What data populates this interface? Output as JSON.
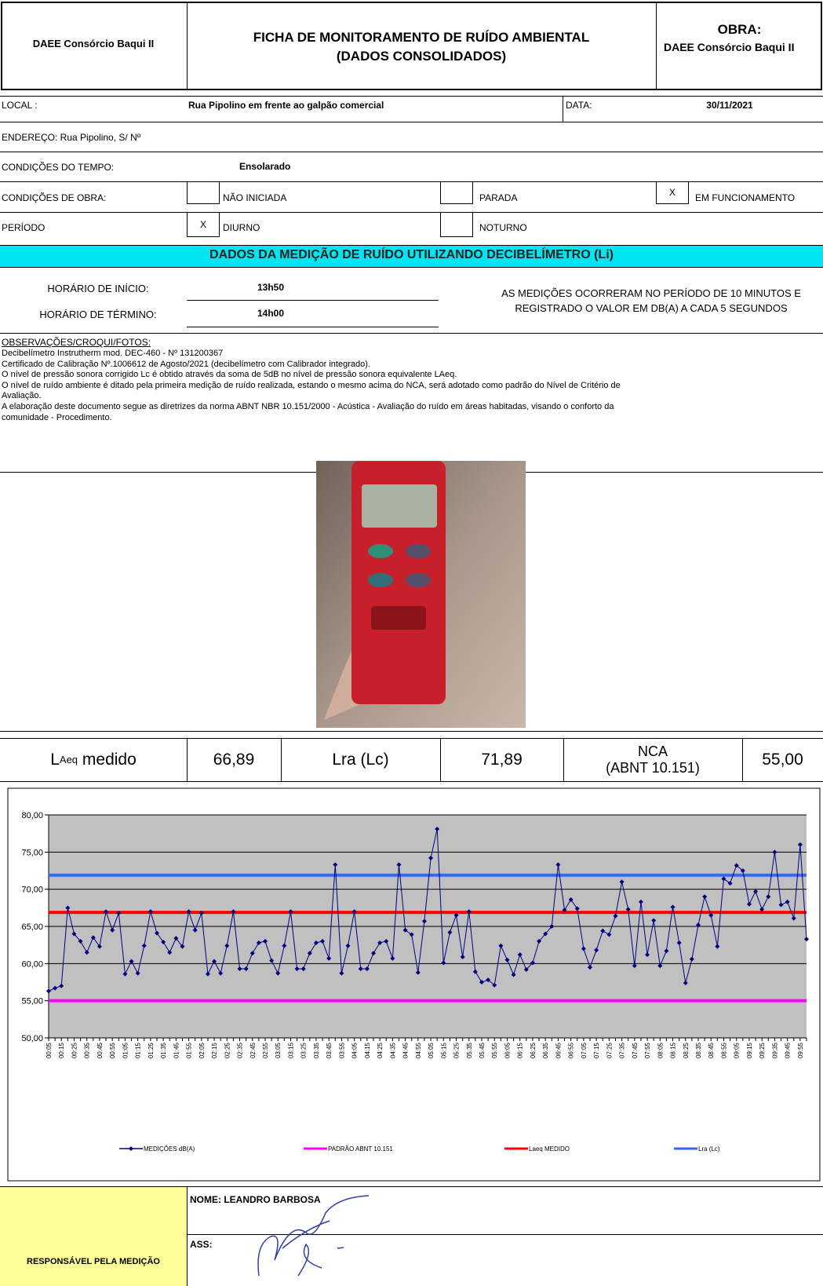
{
  "header": {
    "company": "DAEE Consórcio Baqui II",
    "title_line1": "FICHA DE MONITORAMENTO DE RUÍDO AMBIENTAL",
    "title_line2": "(DADOS CONSOLIDADOS)",
    "obra_label": "OBRA:",
    "obra_value": "DAEE Consórcio Baqui II"
  },
  "info": {
    "local_label": "LOCAL :",
    "local_value": "Rua Pipolino em frente ao galpão comercial",
    "data_label": "DATA:",
    "data_value": "30/11/2021",
    "endereco": "ENDEREÇO:  Rua Pipolino, S/ Nº",
    "tempo_label": "CONDIÇÕES DO TEMPO:",
    "tempo_value": "Ensolarado",
    "obra_label": "CONDIÇÕES DE OBRA:",
    "obra_options": [
      {
        "label": "NÃO INICIADA"
      },
      {
        "label": "PARADA"
      },
      {
        "mark": "X",
        "label": "EM FUNCIONAMENTO"
      }
    ],
    "periodo_label": "PERÍODO",
    "periodo_options": [
      {
        "mark": "X",
        "label": "DIURNO"
      },
      {
        "label": "NOTURNO"
      }
    ]
  },
  "section_title": "DADOS DA MEDIÇÃO DE RUÍDO UTILIZANDO DECIBELÍMETRO (Li)",
  "schedule": {
    "start_label": "HORÁRIO DE INÍCIO:",
    "start": "13h50",
    "end_label": "HORÁRIO DE TÉRMINO:",
    "end": "14h00",
    "note_line1": "AS MEDIÇÕES OCORRERAM NO PERÍODO DE 10 MINUTOS E",
    "note_line2": "REGISTRADO O VALOR EM DB(A) A CADA 5 SEGUNDOS"
  },
  "observations": {
    "title": "OBSERVAÇÕES/CROQUI/FOTOS:",
    "lines": [
      "Decibelímetro Instrutherm mod. DEC-460 - Nº 131200367",
      "Certificado de Calibração Nº.1006612 de Agosto/2021 (decibelímetro com Calibrador integrado).",
      "O nível de pressão sonora corrigido Lc é obtido através da soma de 5dB no nível de pressão sonora equivalente LAeq.",
      "O nível de ruído ambiente é ditado pela primeira medição de ruído realizada, estando o mesmo acima do NCA, será adotado como padrão do Nível de Critério de",
      "Avaliação.",
      "A elaboração deste documento segue as diretrizes da norma ABNT NBR 10.151/2000 - Acústica - Avaliação do ruído em áreas habitadas, visando o conforto da",
      "comunidade - Procedimento."
    ]
  },
  "results": [
    {
      "label_main": "L",
      "label_sub": "Aeq",
      "label_rest": "medido",
      "value": "66,89"
    },
    {
      "label": "Lra (Lc)",
      "value": "71,89"
    },
    {
      "label_line1": "NCA",
      "label_line2": "(ABNT 10.151)",
      "value": "55,00"
    }
  ],
  "chart_data": {
    "type": "line",
    "categories": [
      "00:05",
      null,
      "00:15",
      null,
      "00:25",
      null,
      "00:35",
      null,
      "00:45",
      null,
      "00:55",
      null,
      "01:05",
      null,
      "01:15",
      null,
      "01:25",
      null,
      "01:35",
      null,
      "01:45",
      null,
      "01:55",
      null,
      "02:05",
      null,
      "02:15",
      null,
      "02:25",
      null,
      "02:35",
      null,
      "02:45",
      null,
      "02:55",
      null,
      "03:05",
      null,
      "03:15",
      null,
      "03:25",
      null,
      "03:35",
      null,
      "03:45",
      null,
      "03:55",
      null,
      "04:05",
      null,
      "04:15",
      null,
      "04:25",
      null,
      "04:35",
      null,
      "04:45",
      null,
      "04:55",
      null,
      "05:05",
      null,
      "05:15",
      null,
      "05:25",
      null,
      "05:35",
      null,
      "05:45",
      null,
      "05:55",
      null,
      "06:05",
      null,
      "06:15",
      null,
      "06:25",
      null,
      "06:35",
      null,
      "06:45",
      null,
      "06:55",
      null,
      "07:05",
      null,
      "07:15",
      null,
      "07:25",
      null,
      "07:35",
      null,
      "07:45",
      null,
      "07:55",
      null,
      "08:05",
      null,
      "08:15",
      null,
      "08:25",
      null,
      "08:35",
      null,
      "08:45",
      null,
      "08:55",
      null,
      "09:05",
      null,
      "09:15",
      null,
      "09:25",
      null,
      "09:35",
      null,
      "09:45",
      null,
      "09:55",
      null
    ],
    "series": [
      {
        "name": "MEDIÇÕES dB(A)",
        "color": "#000080",
        "values": [
          56.3,
          56.7,
          57.0,
          67.5,
          64.0,
          63.0,
          61.5,
          63.5,
          62.3,
          67.0,
          64.5,
          66.8,
          58.6,
          60.3,
          58.7,
          62.4,
          67.0,
          64.1,
          62.9,
          61.5,
          63.4,
          62.3,
          67.0,
          64.5,
          66.8,
          58.6,
          60.3,
          58.7,
          62.4,
          67.0,
          59.3,
          59.3,
          61.4,
          62.8,
          63.0,
          60.4,
          58.7,
          62.4,
          67.0,
          59.3,
          59.3,
          61.4,
          62.8,
          63.0,
          60.7,
          73.3,
          58.7,
          62.4,
          67.0,
          59.3,
          59.3,
          61.4,
          62.8,
          63.0,
          60.7,
          73.3,
          64.5,
          63.9,
          58.8,
          65.7,
          74.2,
          78.1,
          60.1,
          64.2,
          66.5,
          60.9,
          67.0,
          58.9,
          57.5,
          57.8,
          57.1,
          62.4,
          60.5,
          58.5,
          61.2,
          59.2,
          60.1,
          63.0,
          64.0,
          65.0,
          73.3,
          67.2,
          68.6,
          67.4,
          62.0,
          59.5,
          61.8,
          64.4,
          63.9,
          66.4,
          71.0,
          67.3,
          59.7,
          68.3,
          61.2,
          65.8,
          59.7,
          61.7,
          67.6,
          62.8,
          57.4,
          60.6,
          65.2,
          69.0,
          66.5,
          62.3,
          71.4,
          70.8,
          73.2,
          72.5,
          68.0,
          69.7,
          67.3,
          69.0,
          75.0,
          67.9,
          68.3,
          66.1,
          76.0,
          63.3
        ]
      }
    ],
    "lines": [
      {
        "name": "PADRÃO ABNT 10.151",
        "color": "#ff00ff",
        "value": 55
      },
      {
        "name": "Laeq MEDIDO",
        "color": "#ff0000",
        "value": 66.89
      },
      {
        "name": "Lra (Lc)",
        "color": "#3366ff",
        "value": 71.89
      }
    ],
    "ylim": [
      50,
      80
    ],
    "yticks": [
      {
        "value": 50,
        "label": "50,00"
      },
      {
        "value": 55,
        "label": "55,00"
      },
      {
        "value": 60,
        "label": "60,00"
      },
      {
        "value": 65,
        "label": "65,00"
      },
      {
        "value": 70,
        "label": "70,00"
      },
      {
        "value": 75,
        "label": "75,00"
      },
      {
        "value": 80,
        "label": "80,00"
      }
    ],
    "grid": true,
    "plot_background": "#c0c0c0"
  },
  "signature": {
    "label": "RESPONSÁVEL PELA MEDIÇÃO",
    "name": "NOME: LEANDRO BARBOSA",
    "ass": "ASS:"
  }
}
